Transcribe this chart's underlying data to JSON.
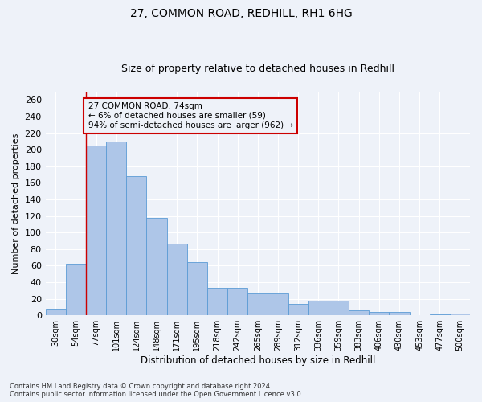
{
  "title1": "27, COMMON ROAD, REDHILL, RH1 6HG",
  "title2": "Size of property relative to detached houses in Redhill",
  "xlabel": "Distribution of detached houses by size in Redhill",
  "ylabel": "Number of detached properties",
  "footnote1": "Contains HM Land Registry data © Crown copyright and database right 2024.",
  "footnote2": "Contains public sector information licensed under the Open Government Licence v3.0.",
  "categories": [
    "30sqm",
    "54sqm",
    "77sqm",
    "101sqm",
    "124sqm",
    "148sqm",
    "171sqm",
    "195sqm",
    "218sqm",
    "242sqm",
    "265sqm",
    "289sqm",
    "312sqm",
    "336sqm",
    "359sqm",
    "383sqm",
    "406sqm",
    "430sqm",
    "453sqm",
    "477sqm",
    "500sqm"
  ],
  "values": [
    8,
    62,
    205,
    210,
    168,
    118,
    87,
    64,
    33,
    33,
    26,
    26,
    14,
    18,
    18,
    6,
    4,
    4,
    0,
    1,
    2
  ],
  "bar_color": "#aec6e8",
  "bar_edge_color": "#5b9bd5",
  "red_line_index": 2,
  "red_line_color": "#cc0000",
  "annotation_text": "27 COMMON ROAD: 74sqm\n← 6% of detached houses are smaller (59)\n94% of semi-detached houses are larger (962) →",
  "annotation_box_color": "#cc0000",
  "ylim": [
    0,
    270
  ],
  "yticks": [
    0,
    20,
    40,
    60,
    80,
    100,
    120,
    140,
    160,
    180,
    200,
    220,
    240,
    260
  ],
  "bg_color": "#eef2f9",
  "grid_color": "#ffffff",
  "title1_fontsize": 10,
  "title2_fontsize": 9,
  "xlabel_fontsize": 8.5,
  "ylabel_fontsize": 8
}
